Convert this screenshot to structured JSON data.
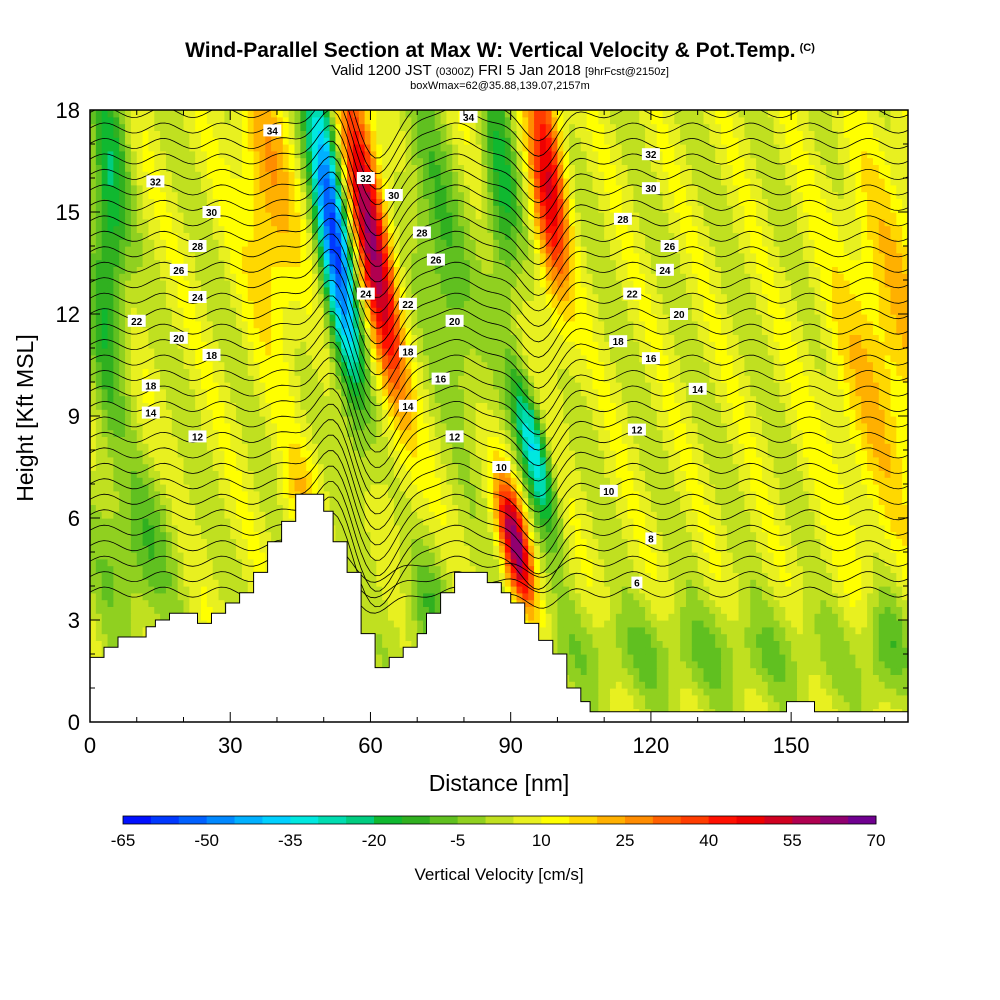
{
  "title": {
    "main": "Wind-Parallel Section at Max W: Vertical Velocity & Pot.Temp.",
    "main_suffix": "(C)",
    "valid_prefix": "Valid 1200 JST",
    "valid_utc": "(0300Z)",
    "valid_date": "FRI 5 Jan 2018",
    "forecast": "[9hrFcst@2150z]",
    "box_info": "boxWmax=62@35.88,139.07,2157m"
  },
  "chart_data": {
    "type": "heatmap",
    "xlabel": "Distance [nm]",
    "ylabel": "Height [Kft MSL]",
    "xlim": [
      0,
      175
    ],
    "ylim": [
      0,
      18
    ],
    "x_ticks": [
      0,
      30,
      60,
      90,
      120,
      150
    ],
    "y_ticks": [
      0,
      3,
      6,
      9,
      12,
      15,
      18
    ],
    "colorbar": {
      "title": "Vertical Velocity [cm/s]",
      "tick_labels": [
        "-65",
        "-50",
        "-35",
        "-20",
        "-5",
        "10",
        "25",
        "40",
        "55",
        "70"
      ],
      "levels": [
        -65,
        -60,
        -55,
        -50,
        -45,
        -40,
        -35,
        -30,
        -25,
        -20,
        -15,
        -10,
        -5,
        0,
        5,
        10,
        15,
        20,
        25,
        30,
        35,
        40,
        45,
        50,
        55,
        60,
        65,
        70
      ],
      "colors": [
        "#0010ff",
        "#0038ff",
        "#0060ff",
        "#0088ff",
        "#00b0ff",
        "#00d0ff",
        "#00e8e0",
        "#00dcb0",
        "#00cc80",
        "#10b830",
        "#30b020",
        "#60c020",
        "#90d020",
        "#c0e020",
        "#e8f020",
        "#ffff00",
        "#ffd800",
        "#ffb000",
        "#ff8c00",
        "#ff6000",
        "#ff3c00",
        "#ff1000",
        "#ee0000",
        "#d00020",
        "#b00050",
        "#900070",
        "#700090"
      ]
    },
    "theta_contours": {
      "units": "C",
      "labels": [
        {
          "text": "34",
          "x": 39,
          "y": 17.4
        },
        {
          "text": "34",
          "x": 81,
          "y": 17.8
        },
        {
          "text": "32",
          "x": 14,
          "y": 15.9
        },
        {
          "text": "32",
          "x": 59,
          "y": 16.0
        },
        {
          "text": "32",
          "x": 120,
          "y": 16.7
        },
        {
          "text": "30",
          "x": 26,
          "y": 15.0
        },
        {
          "text": "30",
          "x": 65,
          "y": 15.5
        },
        {
          "text": "30",
          "x": 120,
          "y": 15.7
        },
        {
          "text": "28",
          "x": 23,
          "y": 14.0
        },
        {
          "text": "28",
          "x": 71,
          "y": 14.4
        },
        {
          "text": "28",
          "x": 114,
          "y": 14.8
        },
        {
          "text": "26",
          "x": 19,
          "y": 13.3
        },
        {
          "text": "26",
          "x": 74,
          "y": 13.6
        },
        {
          "text": "26",
          "x": 124,
          "y": 14.0
        },
        {
          "text": "24",
          "x": 23,
          "y": 12.5
        },
        {
          "text": "24",
          "x": 59,
          "y": 12.6
        },
        {
          "text": "24",
          "x": 123,
          "y": 13.3
        },
        {
          "text": "22",
          "x": 10,
          "y": 11.8
        },
        {
          "text": "22",
          "x": 68,
          "y": 12.3
        },
        {
          "text": "22",
          "x": 116,
          "y": 12.6
        },
        {
          "text": "20",
          "x": 19,
          "y": 11.3
        },
        {
          "text": "20",
          "x": 78,
          "y": 11.8
        },
        {
          "text": "20",
          "x": 126,
          "y": 12.0
        },
        {
          "text": "18",
          "x": 26,
          "y": 10.8
        },
        {
          "text": "18",
          "x": 68,
          "y": 10.9
        },
        {
          "text": "18",
          "x": 113,
          "y": 11.2
        },
        {
          "text": "18",
          "x": 13,
          "y": 9.9
        },
        {
          "text": "16",
          "x": 75,
          "y": 10.1
        },
        {
          "text": "16",
          "x": 120,
          "y": 10.7
        },
        {
          "text": "14",
          "x": 13,
          "y": 9.1
        },
        {
          "text": "14",
          "x": 68,
          "y": 9.3
        },
        {
          "text": "14",
          "x": 130,
          "y": 9.8
        },
        {
          "text": "12",
          "x": 23,
          "y": 8.4
        },
        {
          "text": "12",
          "x": 78,
          "y": 8.4
        },
        {
          "text": "12",
          "x": 117,
          "y": 8.6
        },
        {
          "text": "10",
          "x": 88,
          "y": 7.5
        },
        {
          "text": "10",
          "x": 111,
          "y": 6.8
        },
        {
          "text": "8",
          "x": 120,
          "y": 5.4
        },
        {
          "text": "6",
          "x": 117,
          "y": 4.1
        }
      ]
    },
    "terrain": [
      [
        0,
        1.9
      ],
      [
        3,
        1.9
      ],
      [
        3,
        2.2
      ],
      [
        6,
        2.2
      ],
      [
        6,
        2.5
      ],
      [
        12,
        2.5
      ],
      [
        12,
        2.8
      ],
      [
        14,
        2.8
      ],
      [
        14,
        3.0
      ],
      [
        17,
        3.0
      ],
      [
        17,
        3.2
      ],
      [
        23,
        3.2
      ],
      [
        23,
        2.9
      ],
      [
        26,
        2.9
      ],
      [
        26,
        3.2
      ],
      [
        29,
        3.2
      ],
      [
        29,
        3.5
      ],
      [
        32,
        3.5
      ],
      [
        32,
        3.8
      ],
      [
        35,
        3.8
      ],
      [
        35,
        4.4
      ],
      [
        38,
        4.4
      ],
      [
        38,
        5.3
      ],
      [
        41,
        5.3
      ],
      [
        41,
        5.9
      ],
      [
        44,
        5.9
      ],
      [
        44,
        6.7
      ],
      [
        50,
        6.7
      ],
      [
        50,
        6.2
      ],
      [
        52,
        6.2
      ],
      [
        52,
        5.3
      ],
      [
        55,
        5.3
      ],
      [
        55,
        4.4
      ],
      [
        58,
        4.4
      ],
      [
        58,
        2.6
      ],
      [
        61,
        2.6
      ],
      [
        61,
        1.6
      ],
      [
        64,
        1.6
      ],
      [
        64,
        1.9
      ],
      [
        67,
        1.9
      ],
      [
        67,
        2.2
      ],
      [
        70,
        2.2
      ],
      [
        70,
        2.6
      ],
      [
        72,
        2.6
      ],
      [
        72,
        3.2
      ],
      [
        75,
        3.2
      ],
      [
        75,
        3.8
      ],
      [
        78,
        3.8
      ],
      [
        78,
        4.4
      ],
      [
        85,
        4.4
      ],
      [
        85,
        4.1
      ],
      [
        88,
        4.1
      ],
      [
        88,
        3.8
      ],
      [
        90,
        3.8
      ],
      [
        90,
        3.5
      ],
      [
        93,
        3.5
      ],
      [
        93,
        2.9
      ],
      [
        96,
        2.9
      ],
      [
        96,
        2.4
      ],
      [
        99,
        2.4
      ],
      [
        99,
        2.0
      ],
      [
        102,
        2.0
      ],
      [
        102,
        1.0
      ],
      [
        105,
        1.0
      ],
      [
        105,
        0.6
      ],
      [
        107,
        0.6
      ],
      [
        107,
        0.3
      ],
      [
        149,
        0.3
      ],
      [
        149,
        0.6
      ],
      [
        155,
        0.6
      ],
      [
        155,
        0.3
      ],
      [
        175,
        0.3
      ]
    ]
  }
}
